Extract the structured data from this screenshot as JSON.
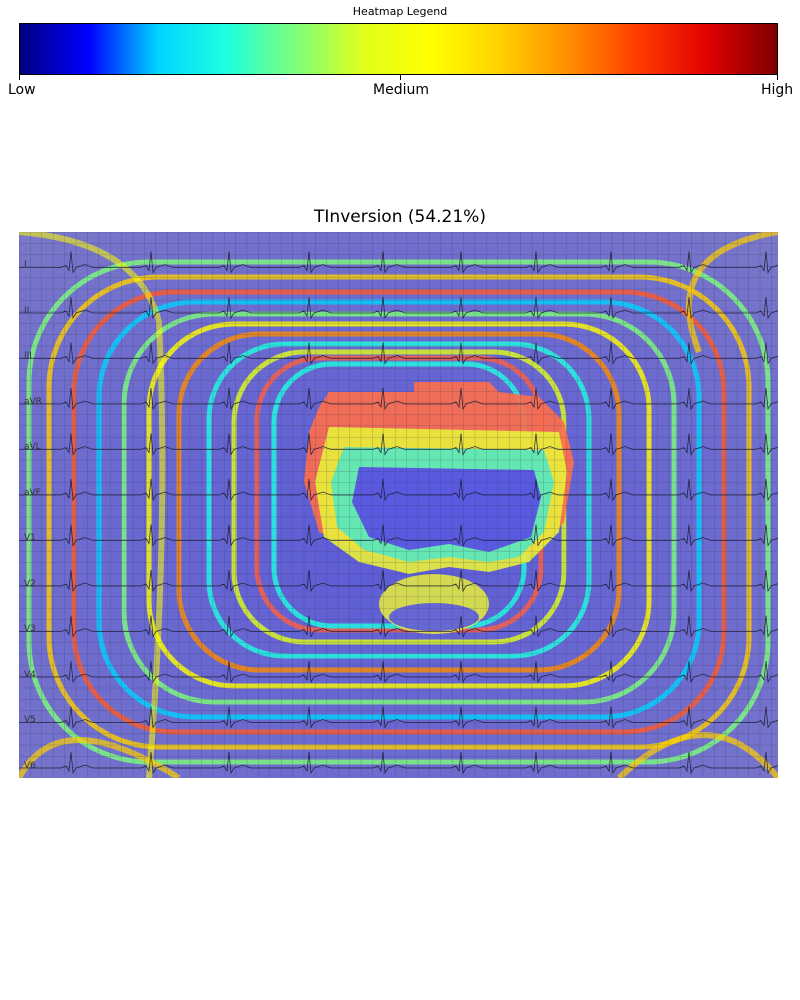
{
  "legend": {
    "title": "Heatmap Legend",
    "ticks": [
      "Low",
      "Medium",
      "High"
    ],
    "stops": [
      "#00007f",
      "#0000ff",
      "#00d4ff",
      "#1effe0",
      "#7dff7a",
      "#e0ff1a",
      "#ffff00",
      "#ffd000",
      "#ff8c00",
      "#ff3a00",
      "#e00000",
      "#7f0000"
    ]
  },
  "chart_data": {
    "type": "heatmap",
    "title": "TInversion (54.21%)",
    "colormap": "jet",
    "scale_labels": [
      "Low",
      "Medium",
      "High"
    ],
    "leads": [
      "I",
      "II",
      "III",
      "aVR",
      "aVL",
      "aVF",
      "V1",
      "V2",
      "V3",
      "V4",
      "V5",
      "V6"
    ]
  }
}
